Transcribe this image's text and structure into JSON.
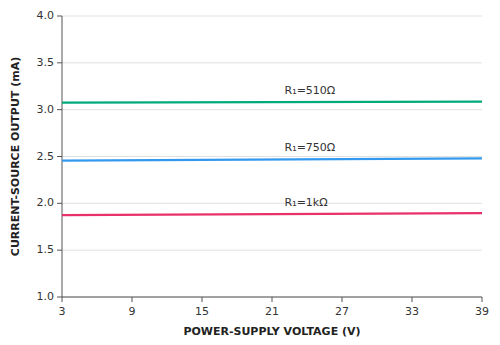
{
  "chart_data": {
    "type": "line",
    "xlabel": "POWER-SUPPLY VOLTAGE (V)",
    "ylabel": "CURRENT-SOURCE OUTPUT (mA)",
    "x": [
      3,
      39
    ],
    "series": [
      {
        "name": "R₁=510Ω",
        "color": "#00AA7A",
        "values": [
          3.075,
          3.085
        ]
      },
      {
        "name": "R₁=750Ω",
        "color": "#3399EE",
        "values": [
          2.455,
          2.48
        ]
      },
      {
        "name": "R₁=1kΩ",
        "color": "#E8306A",
        "values": [
          1.875,
          1.895
        ]
      }
    ],
    "xlim": [
      3,
      39
    ],
    "ylim": [
      1,
      4
    ],
    "xticks": [
      3,
      9,
      15,
      21,
      27,
      33,
      39
    ],
    "yticks": [
      {
        "value": 1,
        "label": "1.0"
      },
      1.5,
      {
        "value": 2,
        "label": "2.0"
      },
      2.5,
      {
        "value": 3,
        "label": "3.0"
      },
      3.5,
      {
        "value": 4,
        "label": "4.0"
      }
    ],
    "grid": true
  }
}
